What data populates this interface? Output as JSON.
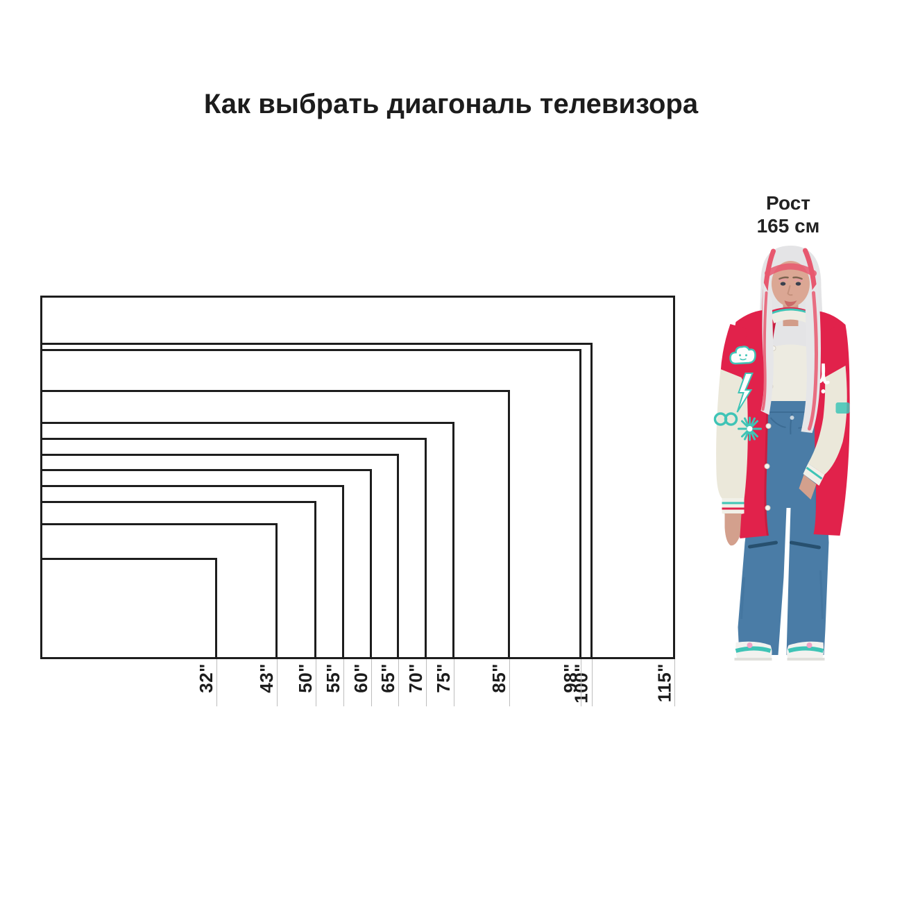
{
  "title": "Как выбрать диагональ телевизора",
  "person": {
    "label_line1": "Рост",
    "label_line2": "165 см",
    "height_cm": 165
  },
  "chart_data": {
    "type": "nested-rectangles",
    "title": "Как выбрать диагональ телевизора",
    "unit": "inch (TV diagonal)",
    "aspect_ratio": "16:9",
    "sizes": [
      {
        "inches": 115,
        "label": "115\""
      },
      {
        "inches": 100,
        "label": "100\""
      },
      {
        "inches": 98,
        "label": "98\""
      },
      {
        "inches": 85,
        "label": "85\""
      },
      {
        "inches": 75,
        "label": "75\""
      },
      {
        "inches": 70,
        "label": "70\""
      },
      {
        "inches": 65,
        "label": "65\""
      },
      {
        "inches": 60,
        "label": "60\""
      },
      {
        "inches": 55,
        "label": "55\""
      },
      {
        "inches": 50,
        "label": "50\""
      },
      {
        "inches": 43,
        "label": "43\""
      },
      {
        "inches": 32,
        "label": "32\""
      }
    ],
    "reference_person": {
      "label": "Рост 165 см",
      "height_cm": 165
    },
    "legend_position": "none",
    "grid": false
  },
  "colors": {
    "background": "#ffffff",
    "outline": "#1d1d1d",
    "tick_line": "#bdbdbd",
    "text": "#1c1c1c",
    "jacket_red": "#e1224b",
    "sleeve_cream": "#ebe8da",
    "accent_teal": "#3fc4b6",
    "jeans_blue": "#4a7ca6",
    "hair_silver": "#e4e4e6",
    "hair_pink": "#e7586f",
    "skin": "#d9a693"
  }
}
